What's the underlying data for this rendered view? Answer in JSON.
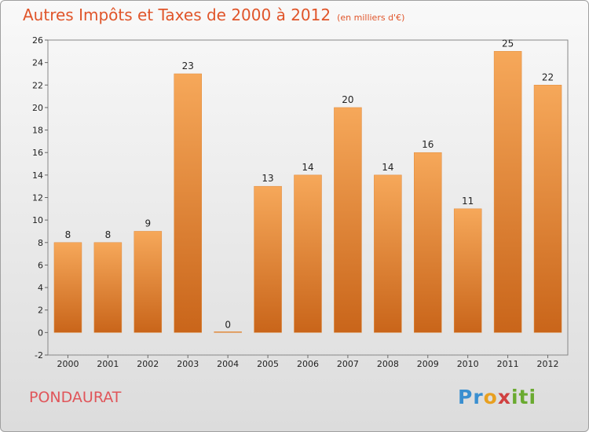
{
  "title": "Autres Impôts et Taxes de 2000 à 2012",
  "unit": "(en milliers d'€)",
  "commune": "PONDAURAT",
  "logo": {
    "p1": "Pr",
    "p2": "o",
    "p3": "x",
    "p4": "iti"
  },
  "colors": {
    "bar_top": "#f6a85a",
    "bar_bottom": "#c9651a",
    "title": "#e0552a"
  },
  "chart_data": {
    "type": "bar",
    "categories": [
      "2000",
      "2001",
      "2002",
      "2003",
      "2004",
      "2005",
      "2006",
      "2007",
      "2008",
      "2009",
      "2010",
      "2011",
      "2012"
    ],
    "values": [
      8,
      8,
      9,
      23,
      0,
      13,
      14,
      20,
      14,
      16,
      11,
      25,
      22
    ],
    "title": "Autres Impôts et Taxes de 2000 à 2012",
    "ylim": [
      -2,
      26
    ],
    "yticks": [
      -2,
      0,
      2,
      4,
      6,
      8,
      10,
      12,
      14,
      16,
      18,
      20,
      22,
      24,
      26
    ],
    "grid": false,
    "legend": "none"
  }
}
